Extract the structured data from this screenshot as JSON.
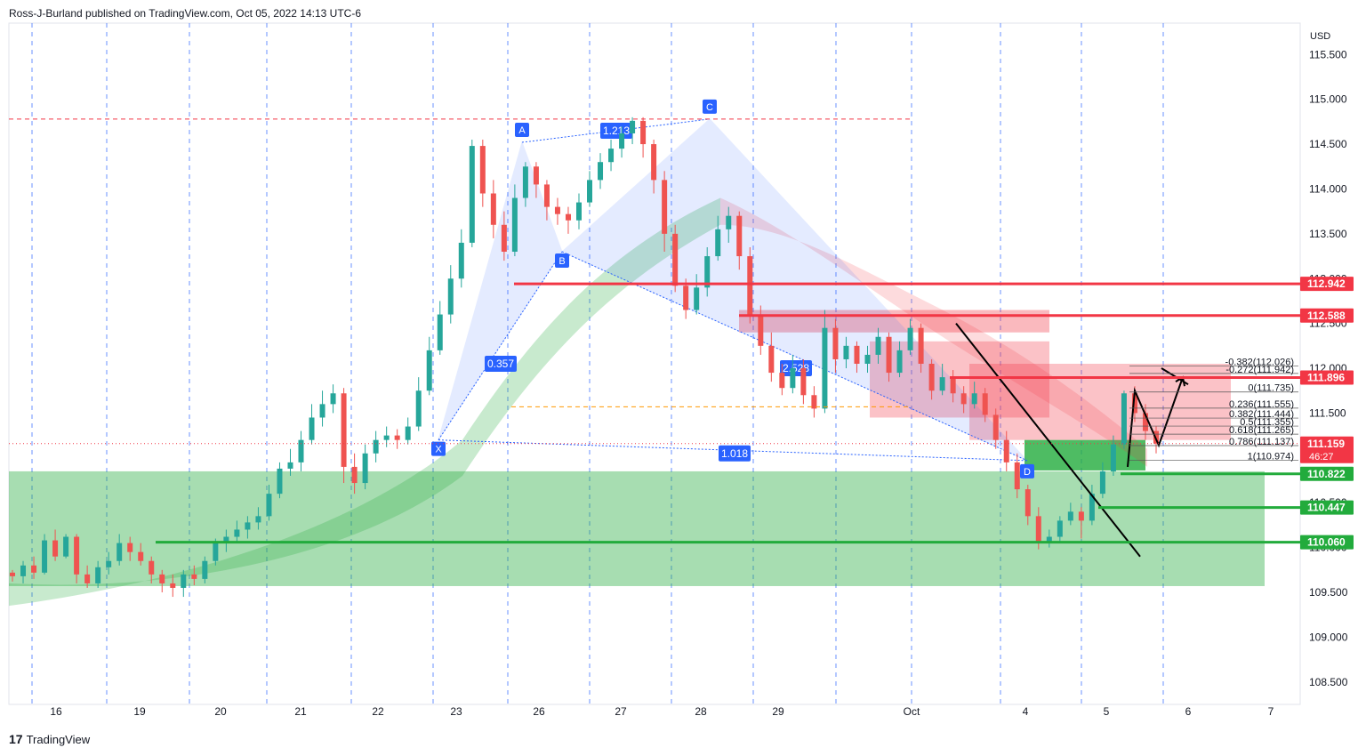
{
  "header": {
    "publisher_line": "Ross-J-Burland published on TradingView.com, Oct 05, 2022 14:13 UTC-6"
  },
  "footer": {
    "brand": "TradingView",
    "logo_glyph": "17"
  },
  "colors": {
    "resistance": "#f23645",
    "support": "#22ab3c",
    "pattern_fill": "#2962ff",
    "up_candle": "#26a69a",
    "down_candle": "#ef5350",
    "grid": "#2962ff",
    "orange_level": "#ff9800"
  },
  "chart_data": {
    "type": "candlestick",
    "currency": "USD",
    "ylim": [
      108.25,
      115.85
    ],
    "y_ticks": [
      "115.500",
      "115.000",
      "114.500",
      "114.000",
      "113.500",
      "113.000",
      "112.500",
      "112.000",
      "111.500",
      "111.000",
      "110.500",
      "110.000",
      "109.500",
      "109.000",
      "108.500"
    ],
    "x_ticks": [
      "16",
      "19",
      "20",
      "21",
      "22",
      "23",
      "26",
      "27",
      "28",
      "29",
      "Oct",
      "4",
      "5",
      "6",
      "7"
    ],
    "price_labels": [
      {
        "text": "112.942",
        "kind": "resistance"
      },
      {
        "text": "112.588",
        "kind": "resistance"
      },
      {
        "text": "111.896",
        "kind": "resistance"
      },
      {
        "text": "111.159",
        "kind": "current",
        "countdown": "46:27"
      },
      {
        "text": "110.822",
        "kind": "support"
      },
      {
        "text": "110.447",
        "kind": "support"
      },
      {
        "text": "110.060",
        "kind": "support"
      }
    ],
    "levels": [
      112.942,
      112.588,
      111.896,
      110.822,
      110.447,
      110.06
    ],
    "current_price": 111.159,
    "pattern": {
      "points": [
        {
          "label": "X",
          "t": 23.0,
          "price": 111.2
        },
        {
          "label": "A",
          "t": 26.0,
          "price": 114.52
        },
        {
          "label": "B",
          "t": 26.5,
          "price": 113.3
        },
        {
          "label": "C",
          "t": 28.1,
          "price": 114.78
        },
        {
          "label": "D",
          "t": 31.0,
          "price": 110.97
        }
      ],
      "ratios": [
        "0.357",
        "1.213",
        "2.528",
        "1.018"
      ]
    },
    "fib_labels": [
      "-0.382(112.026)",
      "-0.272(111.942)",
      "0(111.735)",
      "0.236(111.555)",
      "0.382(111.444)",
      "0.5(111.355)",
      "0.618(111.265)",
      "0.786(111.137)",
      "1(110.974)"
    ],
    "candles_approx": [
      [
        109.72,
        109.68,
        109.75,
        109.62
      ],
      [
        109.68,
        109.8,
        109.85,
        109.6
      ],
      [
        109.8,
        109.72,
        109.9,
        109.65
      ],
      [
        109.72,
        110.08,
        110.15,
        109.7
      ],
      [
        110.08,
        109.9,
        110.2,
        109.85
      ],
      [
        109.9,
        110.12,
        110.15,
        109.88
      ],
      [
        110.12,
        109.7,
        110.15,
        109.6
      ],
      [
        109.7,
        109.6,
        109.8,
        109.55
      ],
      [
        109.6,
        109.78,
        109.85,
        109.55
      ],
      [
        109.78,
        109.85,
        109.95,
        109.7
      ],
      [
        109.85,
        110.05,
        110.15,
        109.8
      ],
      [
        110.05,
        109.95,
        110.12,
        109.85
      ],
      [
        109.95,
        109.85,
        110.05,
        109.8
      ],
      [
        109.85,
        109.7,
        109.9,
        109.6
      ],
      [
        109.7,
        109.6,
        109.75,
        109.5
      ],
      [
        109.6,
        109.55,
        109.7,
        109.45
      ],
      [
        109.55,
        109.7,
        109.75,
        109.45
      ],
      [
        109.7,
        109.65,
        109.8,
        109.58
      ],
      [
        109.65,
        109.85,
        109.9,
        109.6
      ],
      [
        109.85,
        110.05,
        110.1,
        109.8
      ],
      [
        110.05,
        110.12,
        110.2,
        109.95
      ],
      [
        110.12,
        110.2,
        110.3,
        110.05
      ],
      [
        110.2,
        110.28,
        110.35,
        110.1
      ],
      [
        110.28,
        110.35,
        110.45,
        110.2
      ],
      [
        110.35,
        110.6,
        110.7,
        110.3
      ],
      [
        110.6,
        110.88,
        110.95,
        110.55
      ],
      [
        110.88,
        110.95,
        111.1,
        110.8
      ],
      [
        110.95,
        111.2,
        111.3,
        110.85
      ],
      [
        111.2,
        111.45,
        111.6,
        111.15
      ],
      [
        111.45,
        111.6,
        111.75,
        111.35
      ],
      [
        111.6,
        111.72,
        111.82,
        111.5
      ],
      [
        111.72,
        110.9,
        111.78,
        110.72
      ],
      [
        110.9,
        110.72,
        111.05,
        110.6
      ],
      [
        110.72,
        111.05,
        111.15,
        110.65
      ],
      [
        111.05,
        111.2,
        111.3,
        110.95
      ],
      [
        111.2,
        111.25,
        111.35,
        111.12
      ],
      [
        111.25,
        111.2,
        111.32,
        111.1
      ],
      [
        111.2,
        111.35,
        111.45,
        111.15
      ],
      [
        111.35,
        111.75,
        111.9,
        111.3
      ],
      [
        111.75,
        112.2,
        112.35,
        111.7
      ],
      [
        112.2,
        112.6,
        112.75,
        112.15
      ],
      [
        112.6,
        113.0,
        113.15,
        112.5
      ],
      [
        113.0,
        113.4,
        113.55,
        112.9
      ],
      [
        113.4,
        114.48,
        114.55,
        113.35
      ],
      [
        114.48,
        113.95,
        114.55,
        113.8
      ],
      [
        113.95,
        113.6,
        114.1,
        113.45
      ],
      [
        113.6,
        113.3,
        113.75,
        113.2
      ],
      [
        113.3,
        113.9,
        114.05,
        113.25
      ],
      [
        113.9,
        114.25,
        114.3,
        113.8
      ],
      [
        114.25,
        114.05,
        114.3,
        113.9
      ],
      [
        114.05,
        113.8,
        114.1,
        113.65
      ],
      [
        113.8,
        113.72,
        113.9,
        113.6
      ],
      [
        113.72,
        113.65,
        113.8,
        113.5
      ],
      [
        113.65,
        113.85,
        113.95,
        113.55
      ],
      [
        113.85,
        114.1,
        114.2,
        113.8
      ],
      [
        114.1,
        114.3,
        114.4,
        114.0
      ],
      [
        114.3,
        114.45,
        114.55,
        114.2
      ],
      [
        114.45,
        114.62,
        114.7,
        114.35
      ],
      [
        114.62,
        114.76,
        114.8,
        114.5
      ],
      [
        114.76,
        114.5,
        114.8,
        114.35
      ],
      [
        114.5,
        114.1,
        114.55,
        113.95
      ],
      [
        114.1,
        113.5,
        114.2,
        113.3
      ],
      [
        113.5,
        112.92,
        113.6,
        112.85
      ],
      [
        112.92,
        112.65,
        113.0,
        112.55
      ],
      [
        112.65,
        112.9,
        113.05,
        112.6
      ],
      [
        112.9,
        113.25,
        113.35,
        112.8
      ],
      [
        113.25,
        113.55,
        113.7,
        113.2
      ],
      [
        113.55,
        113.7,
        113.8,
        113.4
      ],
      [
        113.7,
        113.25,
        113.75,
        113.1
      ],
      [
        113.25,
        112.6,
        113.35,
        112.5
      ],
      [
        112.6,
        112.25,
        112.7,
        112.15
      ],
      [
        112.25,
        111.95,
        112.4,
        111.85
      ],
      [
        111.95,
        111.78,
        112.05,
        111.7
      ],
      [
        111.78,
        112.0,
        112.15,
        111.72
      ],
      [
        112.0,
        111.7,
        112.1,
        111.6
      ],
      [
        111.7,
        111.55,
        111.8,
        111.45
      ],
      [
        111.55,
        112.45,
        112.65,
        111.5
      ],
      [
        112.45,
        112.1,
        112.55,
        111.95
      ],
      [
        112.1,
        112.25,
        112.35,
        112.0
      ],
      [
        112.25,
        112.05,
        112.3,
        111.95
      ],
      [
        112.05,
        112.15,
        112.25,
        111.95
      ],
      [
        112.15,
        112.35,
        112.45,
        112.05
      ],
      [
        112.35,
        111.95,
        112.4,
        111.85
      ],
      [
        111.95,
        112.2,
        112.3,
        111.9
      ],
      [
        112.2,
        112.45,
        112.55,
        112.15
      ],
      [
        112.45,
        112.05,
        112.5,
        111.95
      ],
      [
        112.05,
        111.75,
        112.1,
        111.65
      ],
      [
        111.75,
        111.9,
        112.05,
        111.7
      ],
      [
        111.9,
        111.72,
        111.98,
        111.62
      ],
      [
        111.72,
        111.6,
        111.8,
        111.5
      ],
      [
        111.6,
        111.72,
        111.85,
        111.55
      ],
      [
        111.72,
        111.48,
        111.78,
        111.4
      ],
      [
        111.48,
        111.2,
        111.55,
        111.1
      ],
      [
        111.2,
        110.95,
        111.3,
        110.85
      ],
      [
        110.95,
        110.65,
        111.05,
        110.55
      ],
      [
        110.65,
        110.35,
        110.7,
        110.25
      ],
      [
        110.35,
        110.05,
        110.45,
        109.98
      ],
      [
        110.05,
        110.12,
        110.2,
        110.0
      ],
      [
        110.12,
        110.3,
        110.35,
        110.05
      ],
      [
        110.3,
        110.4,
        110.5,
        110.25
      ],
      [
        110.4,
        110.3,
        110.45,
        110.1
      ],
      [
        110.3,
        110.6,
        110.7,
        110.25
      ],
      [
        110.6,
        110.85,
        110.95,
        110.55
      ],
      [
        110.85,
        111.15,
        111.25,
        110.8
      ],
      [
        111.15,
        111.72,
        111.75,
        111.1
      ],
      [
        111.72,
        111.5,
        111.8,
        111.4
      ],
      [
        111.5,
        111.3,
        111.6,
        111.2
      ],
      [
        111.3,
        111.16,
        111.35,
        111.05
      ]
    ]
  }
}
